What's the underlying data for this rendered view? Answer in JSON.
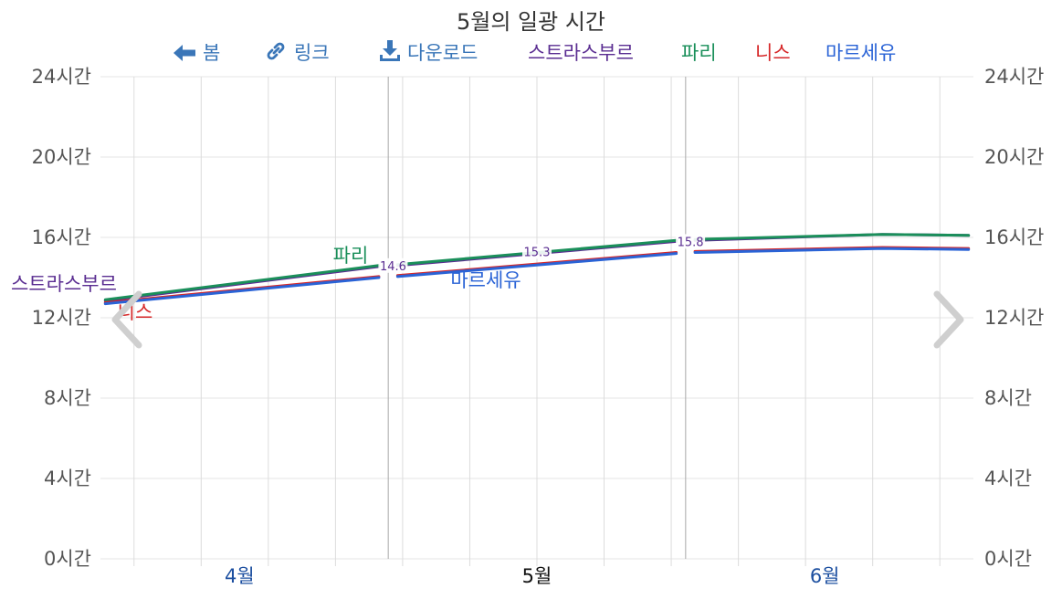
{
  "toolbar": {
    "home_label": "봄",
    "link_label": "링크",
    "download_label": "다운로드",
    "color": "#3a76b8"
  },
  "chart_data": {
    "type": "line",
    "title": "5월의 일광 시간",
    "xlabel": "",
    "ylabel": "",
    "ylim": [
      0,
      24
    ],
    "y_ticks": [
      0,
      4,
      8,
      12,
      16,
      20,
      24
    ],
    "y_tick_labels": [
      "0시간",
      "4시간",
      "8시간",
      "12시간",
      "16시간",
      "20시간",
      "24시간"
    ],
    "x_range": [
      "2024-04-01",
      "2024-06-30"
    ],
    "x_month_labels": [
      {
        "label": "4월",
        "date": "2024-04-15",
        "color": "#1c4fa0"
      },
      {
        "label": "5월",
        "date": "2024-05-16",
        "color": "#111111"
      },
      {
        "label": "6월",
        "date": "2024-06-15",
        "color": "#1c4fa0"
      }
    ],
    "grid": true,
    "legend_position": "top",
    "series": [
      {
        "name": "스트라스부르",
        "color": "#5a2d91",
        "x": [
          "2024-04-01",
          "2024-04-30",
          "2024-05-01",
          "2024-05-31",
          "2024-06-01",
          "2024-06-21",
          "2024-06-30"
        ],
        "y": [
          12.85,
          14.55,
          14.6,
          15.8,
          15.85,
          16.15,
          16.1
        ],
        "point_labels": [
          {
            "x": "2024-05-01",
            "text": "14.6"
          },
          {
            "x": "2024-05-16",
            "text": "15.3"
          },
          {
            "x": "2024-06-01",
            "text": "15.8"
          }
        ]
      },
      {
        "name": "파리",
        "color": "#1a8f5a",
        "x": [
          "2024-04-01",
          "2024-04-30",
          "2024-05-01",
          "2024-05-31",
          "2024-06-01",
          "2024-06-21",
          "2024-06-30"
        ],
        "y": [
          12.9,
          14.6,
          14.65,
          15.85,
          15.9,
          16.15,
          16.1
        ]
      },
      {
        "name": "니스",
        "color": "#d62728",
        "x": [
          "2024-04-01",
          "2024-04-30",
          "2024-05-01",
          "2024-05-31",
          "2024-06-01",
          "2024-06-21",
          "2024-06-30"
        ],
        "y": [
          12.75,
          14.05,
          14.1,
          15.25,
          15.3,
          15.5,
          15.45
        ]
      },
      {
        "name": "마르세유",
        "color": "#2a63d6",
        "x": [
          "2024-04-01",
          "2024-04-30",
          "2024-05-01",
          "2024-05-31",
          "2024-06-01",
          "2024-06-21",
          "2024-06-30"
        ],
        "y": [
          12.7,
          14.0,
          14.05,
          15.2,
          15.25,
          15.45,
          15.4
        ]
      }
    ],
    "series_labels": [
      {
        "name": "스트라스부르",
        "color": "#5a2d91"
      },
      {
        "name": "파리",
        "color": "#1a8f5a"
      },
      {
        "name": "니스",
        "color": "#d62728"
      },
      {
        "name": "마르세유",
        "color": "#2a63d6"
      }
    ]
  }
}
